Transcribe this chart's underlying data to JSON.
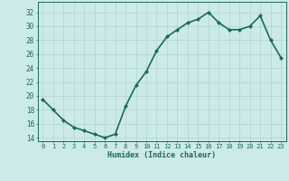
{
  "x": [
    0,
    1,
    2,
    3,
    4,
    5,
    6,
    7,
    8,
    9,
    10,
    11,
    12,
    13,
    14,
    15,
    16,
    17,
    18,
    19,
    20,
    21,
    22,
    23
  ],
  "y": [
    19.5,
    18.0,
    16.5,
    15.5,
    15.0,
    14.5,
    14.0,
    14.5,
    18.5,
    21.5,
    23.5,
    26.5,
    28.5,
    29.5,
    30.5,
    31.0,
    32.0,
    30.5,
    29.5,
    29.5,
    30.0,
    31.5,
    28.0,
    25.5
  ],
  "xlabel": "Humidex (Indice chaleur)",
  "ylabel": "",
  "title": "",
  "xlim": [
    -0.5,
    23.5
  ],
  "ylim": [
    13.5,
    33.5
  ],
  "yticks": [
    14,
    16,
    18,
    20,
    22,
    24,
    26,
    28,
    30,
    32
  ],
  "xticks": [
    0,
    1,
    2,
    3,
    4,
    5,
    6,
    7,
    8,
    9,
    10,
    11,
    12,
    13,
    14,
    15,
    16,
    17,
    18,
    19,
    20,
    21,
    22,
    23
  ],
  "xtick_labels": [
    "0",
    "1",
    "2",
    "3",
    "4",
    "5",
    "6",
    "7",
    "8",
    "9",
    "10",
    "11",
    "12",
    "13",
    "14",
    "15",
    "16",
    "17",
    "18",
    "19",
    "20",
    "21",
    "22",
    "23"
  ],
  "line_color": "#1a6b5a",
  "marker": "D",
  "marker_size": 2.0,
  "background_color": "#cceae8",
  "grid_color": "#afd4d1",
  "tick_color": "#1a6b5a",
  "label_color": "#1a6b5a",
  "line_width": 1.2
}
